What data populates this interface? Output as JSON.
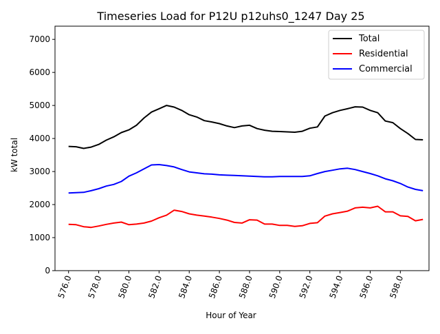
{
  "chart_data": {
    "type": "line",
    "title": "Timeseries Load for P12U p12uhs0_1247  Day 25",
    "xlabel": "Hour of Year",
    "ylabel": "kW total",
    "xlim": [
      575.1,
      599.9
    ],
    "ylim": [
      0,
      7400
    ],
    "x_ticks": [
      576,
      578,
      580,
      582,
      584,
      586,
      588,
      590,
      592,
      594,
      596,
      598
    ],
    "x_tick_labels": [
      "576.0",
      "578.0",
      "580.0",
      "582.0",
      "584.0",
      "586.0",
      "588.0",
      "590.0",
      "592.0",
      "594.0",
      "596.0",
      "598.0"
    ],
    "y_ticks": [
      0,
      1000,
      2000,
      3000,
      4000,
      5000,
      6000,
      7000
    ],
    "y_tick_labels": [
      "0",
      "1000",
      "2000",
      "3000",
      "4000",
      "5000",
      "6000",
      "7000"
    ],
    "grid": false,
    "legend_position": "top-right",
    "x": [
      576.0,
      576.5,
      577.0,
      577.5,
      578.0,
      578.5,
      579.0,
      579.5,
      580.0,
      580.5,
      581.0,
      581.5,
      582.0,
      582.5,
      583.0,
      583.5,
      584.0,
      584.5,
      585.0,
      585.5,
      586.0,
      586.5,
      587.0,
      587.5,
      588.0,
      588.5,
      589.0,
      589.5,
      590.0,
      590.5,
      591.0,
      591.5,
      592.0,
      592.5,
      593.0,
      593.5,
      594.0,
      594.5,
      595.0,
      595.5,
      596.0,
      596.5,
      597.0,
      597.5,
      598.0,
      598.5,
      599.0,
      599.5
    ],
    "series": [
      {
        "name": "Total",
        "color": "#000000",
        "values": [
          3760,
          3750,
          3700,
          3740,
          3820,
          3950,
          4050,
          4180,
          4260,
          4400,
          4620,
          4800,
          4900,
          5000,
          4950,
          4850,
          4720,
          4650,
          4540,
          4500,
          4450,
          4380,
          4330,
          4380,
          4400,
          4300,
          4250,
          4220,
          4210,
          4200,
          4190,
          4220,
          4310,
          4350,
          4680,
          4780,
          4850,
          4900,
          4960,
          4950,
          4850,
          4780,
          4530,
          4480,
          4300,
          4150,
          3970,
          3960
        ]
      },
      {
        "name": "Residential",
        "color": "#ff0000",
        "values": [
          1400,
          1390,
          1330,
          1310,
          1350,
          1400,
          1440,
          1470,
          1390,
          1410,
          1440,
          1500,
          1600,
          1680,
          1830,
          1790,
          1720,
          1680,
          1650,
          1620,
          1580,
          1530,
          1460,
          1440,
          1540,
          1530,
          1410,
          1410,
          1370,
          1370,
          1340,
          1360,
          1430,
          1450,
          1650,
          1720,
          1760,
          1800,
          1900,
          1920,
          1900,
          1950,
          1780,
          1780,
          1660,
          1640,
          1510,
          1550
        ]
      },
      {
        "name": "Commercial",
        "color": "#0000ff",
        "values": [
          2350,
          2360,
          2370,
          2420,
          2480,
          2560,
          2610,
          2700,
          2860,
          2960,
          3080,
          3200,
          3210,
          3180,
          3140,
          3060,
          2990,
          2960,
          2930,
          2920,
          2900,
          2890,
          2880,
          2870,
          2860,
          2850,
          2840,
          2840,
          2850,
          2850,
          2850,
          2850,
          2870,
          2940,
          3000,
          3040,
          3080,
          3100,
          3060,
          3000,
          2940,
          2870,
          2780,
          2720,
          2640,
          2530,
          2460,
          2420
        ]
      }
    ]
  }
}
